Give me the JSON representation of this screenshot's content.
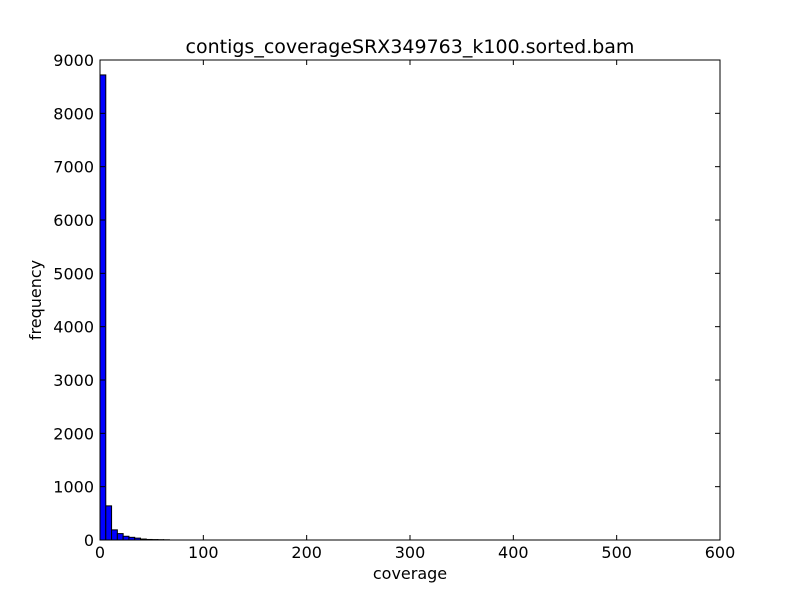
{
  "chart_data": {
    "type": "bar",
    "title": "contigs_coverageSRX349763_k100.sorted.bam",
    "xlabel": "coverage",
    "ylabel": "frequency",
    "xlim": [
      0,
      600
    ],
    "ylim": [
      0,
      9000
    ],
    "xticks": [
      "0",
      "100",
      "200",
      "300",
      "400",
      "500",
      "600"
    ],
    "yticks": [
      "0",
      "1000",
      "2000",
      "3000",
      "4000",
      "5000",
      "6000",
      "7000",
      "8000",
      "9000"
    ],
    "bin_width": 5.6,
    "bins": [
      {
        "x0": 0.0,
        "value": 8720
      },
      {
        "x0": 5.6,
        "value": 640
      },
      {
        "x0": 11.2,
        "value": 190
      },
      {
        "x0": 16.8,
        "value": 120
      },
      {
        "x0": 22.4,
        "value": 70
      },
      {
        "x0": 28.0,
        "value": 50
      },
      {
        "x0": 33.6,
        "value": 35
      },
      {
        "x0": 39.2,
        "value": 18
      },
      {
        "x0": 44.8,
        "value": 10
      },
      {
        "x0": 50.4,
        "value": 8
      },
      {
        "x0": 56.0,
        "value": 6
      },
      {
        "x0": 61.6,
        "value": 4
      }
    ],
    "bar_color": "#0000ff",
    "grid": false,
    "legend": "none"
  }
}
